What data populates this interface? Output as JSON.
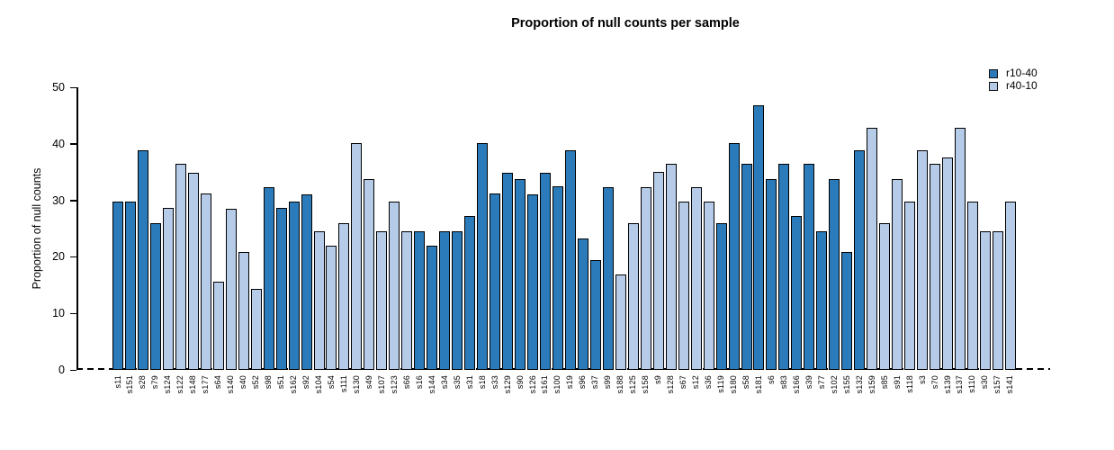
{
  "chart_data": {
    "type": "bar",
    "title": "Proportion of null counts per sample",
    "xlabel": "",
    "ylabel": "Proportion of null counts",
    "ylim": [
      0,
      50
    ],
    "yticks": [
      0,
      10,
      20,
      30,
      40,
      50
    ],
    "grid": false,
    "legend_position": "top-right",
    "baseline_style": "dashed",
    "series": [
      {
        "name": "r10-40",
        "color": "#2b7bba"
      },
      {
        "name": "r40-10",
        "color": "#b5cbe8"
      }
    ],
    "samples": [
      {
        "label": "s11",
        "value": 29.8,
        "series": "r10-40"
      },
      {
        "label": "s151",
        "value": 29.8,
        "series": "r10-40"
      },
      {
        "label": "s28",
        "value": 38.9,
        "series": "r10-40"
      },
      {
        "label": "s79",
        "value": 25.9,
        "series": "r10-40"
      },
      {
        "label": "s124",
        "value": 28.6,
        "series": "r40-10"
      },
      {
        "label": "s122",
        "value": 36.4,
        "series": "r40-10"
      },
      {
        "label": "s148",
        "value": 34.9,
        "series": "r40-10"
      },
      {
        "label": "s177",
        "value": 31.2,
        "series": "r40-10"
      },
      {
        "label": "s64",
        "value": 15.6,
        "series": "r40-10"
      },
      {
        "label": "s140",
        "value": 28.5,
        "series": "r40-10"
      },
      {
        "label": "s40",
        "value": 20.8,
        "series": "r40-10"
      },
      {
        "label": "s52",
        "value": 14.3,
        "series": "r40-10"
      },
      {
        "label": "s98",
        "value": 32.4,
        "series": "r10-40"
      },
      {
        "label": "s51",
        "value": 28.6,
        "series": "r10-40"
      },
      {
        "label": "s162",
        "value": 29.8,
        "series": "r10-40"
      },
      {
        "label": "s92",
        "value": 31.1,
        "series": "r10-40"
      },
      {
        "label": "s104",
        "value": 24.5,
        "series": "r40-10"
      },
      {
        "label": "s54",
        "value": 22,
        "series": "r40-10"
      },
      {
        "label": "s111",
        "value": 26,
        "series": "r40-10"
      },
      {
        "label": "s130",
        "value": 40.2,
        "series": "r40-10"
      },
      {
        "label": "s49",
        "value": 33.7,
        "series": "r40-10"
      },
      {
        "label": "s107",
        "value": 24.5,
        "series": "r40-10"
      },
      {
        "label": "s123",
        "value": 29.8,
        "series": "r40-10"
      },
      {
        "label": "s66",
        "value": 24.5,
        "series": "r40-10"
      },
      {
        "label": "s16",
        "value": 24.5,
        "series": "r10-40"
      },
      {
        "label": "s144",
        "value": 22,
        "series": "r10-40"
      },
      {
        "label": "s34",
        "value": 24.5,
        "series": "r10-40"
      },
      {
        "label": "s35",
        "value": 24.5,
        "series": "r10-40"
      },
      {
        "label": "s31",
        "value": 27.2,
        "series": "r10-40"
      },
      {
        "label": "s18",
        "value": 40.2,
        "series": "r10-40"
      },
      {
        "label": "s33",
        "value": 31.2,
        "series": "r10-40"
      },
      {
        "label": "s129",
        "value": 34.9,
        "series": "r10-40"
      },
      {
        "label": "s90",
        "value": 33.7,
        "series": "r10-40"
      },
      {
        "label": "s126",
        "value": 31.1,
        "series": "r10-40"
      },
      {
        "label": "s161",
        "value": 34.9,
        "series": "r10-40"
      },
      {
        "label": "s100",
        "value": 32.5,
        "series": "r10-40"
      },
      {
        "label": "s19",
        "value": 38.9,
        "series": "r10-40"
      },
      {
        "label": "s96",
        "value": 23.3,
        "series": "r10-40"
      },
      {
        "label": "s37",
        "value": 19.5,
        "series": "r10-40"
      },
      {
        "label": "s99",
        "value": 32.4,
        "series": "r10-40"
      },
      {
        "label": "s188",
        "value": 16.8,
        "series": "r40-10"
      },
      {
        "label": "s125",
        "value": 26,
        "series": "r40-10"
      },
      {
        "label": "s158",
        "value": 32.4,
        "series": "r40-10"
      },
      {
        "label": "s9",
        "value": 35,
        "series": "r40-10"
      },
      {
        "label": "s128",
        "value": 36.4,
        "series": "r40-10"
      },
      {
        "label": "s67",
        "value": 29.8,
        "series": "r40-10"
      },
      {
        "label": "s12",
        "value": 32.4,
        "series": "r40-10"
      },
      {
        "label": "s36",
        "value": 29.8,
        "series": "r40-10"
      },
      {
        "label": "s119",
        "value": 26,
        "series": "r10-40"
      },
      {
        "label": "s180",
        "value": 40.2,
        "series": "r10-40"
      },
      {
        "label": "s58",
        "value": 36.4,
        "series": "r10-40"
      },
      {
        "label": "s181",
        "value": 46.8,
        "series": "r10-40"
      },
      {
        "label": "s6",
        "value": 33.7,
        "series": "r10-40"
      },
      {
        "label": "s83",
        "value": 36.4,
        "series": "r10-40"
      },
      {
        "label": "s166",
        "value": 27.2,
        "series": "r10-40"
      },
      {
        "label": "s39",
        "value": 36.4,
        "series": "r10-40"
      },
      {
        "label": "s77",
        "value": 24.5,
        "series": "r10-40"
      },
      {
        "label": "s102",
        "value": 33.7,
        "series": "r10-40"
      },
      {
        "label": "s155",
        "value": 20.8,
        "series": "r10-40"
      },
      {
        "label": "s132",
        "value": 38.9,
        "series": "r10-40"
      },
      {
        "label": "s159",
        "value": 42.8,
        "series": "r40-10"
      },
      {
        "label": "s85",
        "value": 26,
        "series": "r40-10"
      },
      {
        "label": "s91",
        "value": 33.7,
        "series": "r40-10"
      },
      {
        "label": "s118",
        "value": 29.8,
        "series": "r40-10"
      },
      {
        "label": "s3",
        "value": 38.9,
        "series": "r40-10"
      },
      {
        "label": "s70",
        "value": 36.4,
        "series": "r40-10"
      },
      {
        "label": "s139",
        "value": 37.6,
        "series": "r40-10"
      },
      {
        "label": "s137",
        "value": 42.8,
        "series": "r40-10"
      },
      {
        "label": "s110",
        "value": 29.8,
        "series": "r40-10"
      },
      {
        "label": "s30",
        "value": 24.5,
        "series": "r40-10"
      },
      {
        "label": "s157",
        "value": 24.5,
        "series": "r40-10"
      },
      {
        "label": "s141",
        "value": 29.8,
        "series": "r40-10"
      }
    ]
  }
}
